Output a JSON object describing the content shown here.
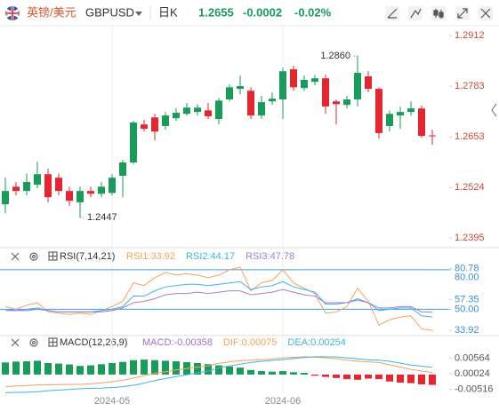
{
  "header": {
    "pair": "英镑/美元",
    "symbol": "GBPUSD",
    "period": "日K",
    "price": "1.2655",
    "change": "-0.0002",
    "change_pct": "-0.02%"
  },
  "chart_data": [
    {
      "type": "candlestick",
      "up_color": "#1a9b5a",
      "down_color": "#e3262f",
      "tick_color": "#d2473b",
      "categories": [
        null,
        null,
        null,
        null,
        null,
        null,
        null,
        null,
        null,
        null,
        "2024-05",
        null,
        null,
        null,
        null,
        null,
        null,
        null,
        null,
        null,
        null,
        null,
        null,
        null,
        null,
        null,
        "2024-06",
        null,
        null,
        null,
        null,
        null,
        null,
        null,
        null,
        null,
        null,
        null,
        null,
        null,
        null
      ],
      "open": [
        1.2481,
        1.2526,
        1.2515,
        1.2531,
        1.2558,
        1.2549,
        1.2515,
        1.2486,
        1.2515,
        1.2508,
        1.251,
        1.2554,
        1.2588,
        1.2685,
        1.2703,
        1.2681,
        1.2701,
        1.2712,
        1.2717,
        1.2721,
        1.2699,
        1.2749,
        1.2776,
        1.2771,
        1.2708,
        1.2744,
        1.2749,
        1.2826,
        1.2778,
        1.2794,
        1.2803,
        1.2744,
        1.2735,
        1.2749,
        1.2808,
        1.2776,
        1.2681,
        1.2708,
        1.2717,
        1.2726,
        1.2657
      ],
      "high": [
        1.2549,
        1.2538,
        1.256,
        1.259,
        1.2572,
        1.256,
        1.2526,
        1.2526,
        1.2526,
        1.2538,
        1.2558,
        1.2595,
        1.2694,
        1.2697,
        1.2712,
        1.2717,
        1.2726,
        1.274,
        1.2737,
        1.274,
        1.2753,
        1.2787,
        1.281,
        1.278,
        1.2758,
        1.2767,
        1.283,
        1.2835,
        1.281,
        1.2812,
        1.2812,
        1.2749,
        1.2758,
        1.286,
        1.2821,
        1.278,
        1.2721,
        1.273,
        1.2744,
        1.2733,
        1.2672
      ],
      "low": [
        1.2458,
        1.2504,
        1.2504,
        1.2522,
        1.2486,
        1.2504,
        1.2477,
        1.2447,
        1.2499,
        1.2499,
        1.2504,
        1.2499,
        1.2583,
        1.2667,
        1.2644,
        1.2672,
        1.2694,
        1.2708,
        1.2708,
        1.2699,
        1.2685,
        1.2744,
        1.2762,
        1.2699,
        1.2699,
        1.2735,
        1.2699,
        1.2771,
        1.2771,
        1.2785,
        1.2712,
        1.2685,
        1.2726,
        1.2731,
        1.2767,
        1.2649,
        1.2667,
        1.2674,
        1.2708,
        1.2651,
        1.2633
      ],
      "close": [
        1.2515,
        1.2515,
        1.2538,
        1.2558,
        1.2499,
        1.2515,
        1.249,
        1.2515,
        1.2508,
        1.2526,
        1.2549,
        1.2588,
        1.269,
        1.2674,
        1.2667,
        1.2708,
        1.2715,
        1.2728,
        1.2728,
        1.2706,
        1.2746,
        1.278,
        1.2783,
        1.2708,
        1.2742,
        1.2751,
        1.2821,
        1.278,
        1.2799,
        1.2803,
        1.2731,
        1.2737,
        1.2749,
        1.2817,
        1.2776,
        1.2663,
        1.2712,
        1.2717,
        1.2726,
        1.2656,
        1.2655
      ],
      "annotations": [
        {
          "value": 1.286,
          "label": "1.2860"
        },
        {
          "value": 1.2447,
          "label": "1.2447"
        }
      ],
      "ylim": [
        1.2377,
        1.2935
      ],
      "yticks": [
        1.2912,
        1.2783,
        1.2653,
        1.2524,
        1.2395
      ]
    },
    {
      "type": "line",
      "title": "RSI(7,14,21)",
      "tick_color": "#3d8fd6",
      "hlines": [
        80,
        50
      ],
      "hline_color": "#3d9be9",
      "series": [
        {
          "name": "RSI1:33.92",
          "color": "#f4a25c",
          "values": [
            52,
            50,
            53,
            55,
            48,
            47,
            46,
            47,
            46,
            49,
            52,
            56,
            70,
            68,
            74,
            78,
            76,
            77,
            76,
            74,
            76,
            80,
            82,
            64,
            70,
            72,
            80,
            70,
            66,
            62,
            47,
            48,
            52,
            66,
            56,
            38,
            42,
            44,
            45,
            35,
            33.92
          ]
        },
        {
          "name": "RSI2:44.17",
          "color": "#3fb3e6",
          "values": [
            50,
            49,
            50,
            51,
            49,
            48,
            48,
            48,
            48,
            49,
            50,
            52,
            60,
            60,
            64,
            67,
            68,
            69,
            69,
            68,
            69,
            70,
            71,
            65,
            67,
            68,
            71,
            67,
            65,
            63,
            54,
            54,
            55,
            58,
            55,
            49,
            50,
            51,
            51,
            45,
            44.17
          ]
        },
        {
          "name": "RSI3:47.78",
          "color": "#a07ed8",
          "values": [
            49,
            49,
            49,
            50,
            49,
            48,
            48,
            48,
            48,
            48,
            49,
            51,
            55,
            56,
            58,
            61,
            62,
            62,
            63,
            62,
            63,
            64,
            64,
            61,
            62,
            63,
            65,
            63,
            61,
            60,
            55,
            55,
            55,
            57,
            55,
            51,
            51,
            52,
            52,
            48,
            47.78
          ]
        }
      ],
      "ylim": [
        30,
        84
      ],
      "yticks": [
        {
          "value": 80,
          "label": "80.00"
        },
        80.78,
        57.35,
        {
          "value": 50,
          "label": "50.00"
        },
        33.92
      ]
    },
    {
      "type": "combo",
      "title": "MACD(12,26,9)",
      "tick_color": "#555555",
      "histogram": {
        "name": "MACD:-0.00358",
        "color": "#9b6fd0",
        "up_color": "#1a9b5a",
        "down_color": "#e3262f",
        "values": [
          0.0042,
          0.0045,
          0.0046,
          0.0048,
          0.004,
          0.0038,
          0.0035,
          0.003,
          0.0032,
          0.0036,
          0.004,
          0.0044,
          0.005,
          0.0052,
          0.005,
          0.0048,
          0.0046,
          0.0043,
          0.004,
          0.0036,
          0.0032,
          0.0028,
          0.0024,
          0.0016,
          0.0012,
          0.001,
          0.0012,
          0.0008,
          0.0006,
          -0.0004,
          -0.0008,
          -0.0012,
          -0.0016,
          -0.0018,
          -0.0014,
          -0.0016,
          -0.0024,
          -0.0028,
          -0.003,
          -0.0034,
          -0.00358
        ]
      },
      "series": [
        {
          "name": "DIF:0.00075",
          "color": "#f4a25c",
          "values": [
            -0.0042,
            -0.004,
            -0.0038,
            -0.0036,
            -0.0036,
            -0.0035,
            -0.0034,
            -0.0034,
            -0.0032,
            -0.0029,
            -0.0025,
            -0.002,
            -0.0012,
            -0.0004,
            0.0004,
            0.001,
            0.0016,
            0.0021,
            0.0026,
            0.003,
            0.0039,
            0.0044,
            0.0048,
            0.005,
            0.0052,
            0.0054,
            0.0058,
            0.006,
            0.0062,
            0.006,
            0.0058,
            0.0055,
            0.005,
            0.0046,
            0.0044,
            0.0042,
            0.0034,
            0.0026,
            0.0018,
            0.0012,
            0.00075
          ]
        },
        {
          "name": "DEA:0.00254",
          "color": "#3fb3e6",
          "values": [
            -0.0063,
            -0.0062,
            -0.0061,
            -0.006,
            -0.0056,
            -0.0054,
            -0.0052,
            -0.0049,
            -0.0048,
            -0.0047,
            -0.0045,
            -0.0042,
            -0.0037,
            -0.003,
            -0.0021,
            -0.0014,
            -0.0007,
            -0.0001,
            0.0006,
            0.0012,
            0.0023,
            0.003,
            0.0036,
            0.0042,
            0.0046,
            0.0049,
            0.0052,
            0.0056,
            0.0059,
            0.0062,
            0.0062,
            0.0061,
            0.0058,
            0.0055,
            0.0051,
            0.005,
            0.0046,
            0.004,
            0.0033,
            0.0029,
            0.00254
          ]
        }
      ],
      "ylim": [
        -0.0068,
        0.008
      ],
      "yticks": [
        0.00564,
        0.00024,
        -0.00516
      ]
    }
  ]
}
